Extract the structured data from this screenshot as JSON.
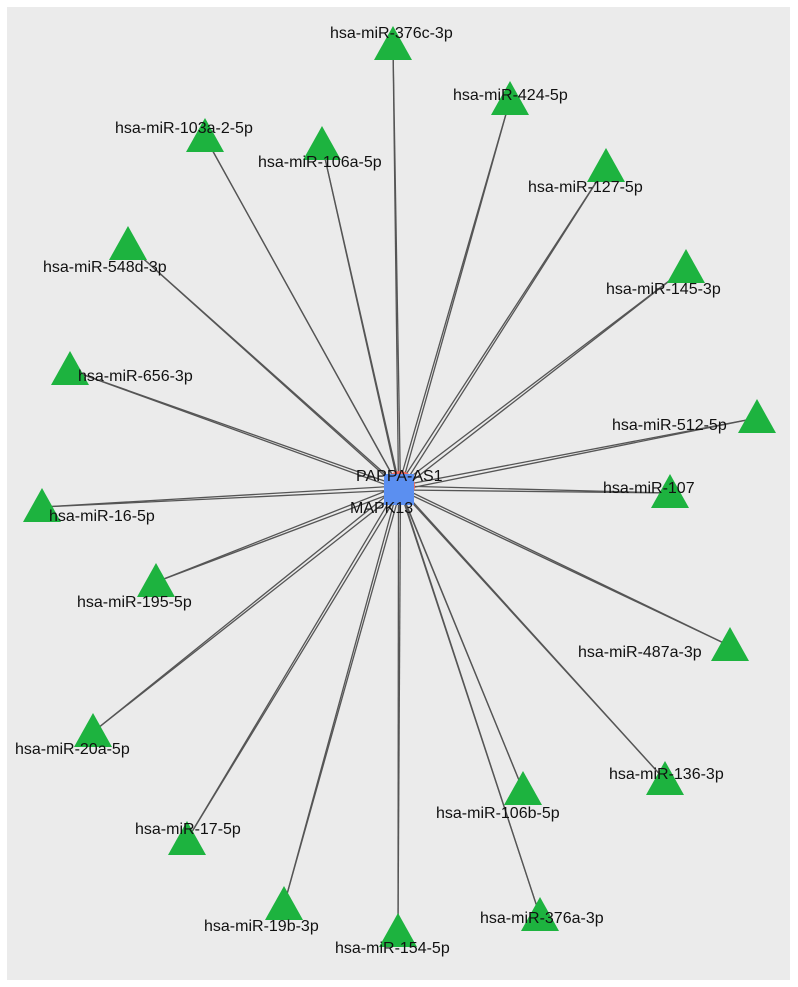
{
  "colors": {
    "background": "#ebebeb",
    "mirna": "#1db33f",
    "lncrna": "#f06a5f",
    "mrna": "#5b8ff0",
    "edge": "#555555"
  },
  "hubs": {
    "lncrna": "PAPPA-AS1",
    "mrna": "MAPK13"
  },
  "mirnas": [
    "hsa-miR-376c-3p",
    "hsa-miR-424-5p",
    "hsa-miR-103a-2-5p",
    "hsa-miR-106a-5p",
    "hsa-miR-127-5p",
    "hsa-miR-548d-3p",
    "hsa-miR-145-3p",
    "hsa-miR-656-3p",
    "hsa-miR-512-5p",
    "hsa-miR-107",
    "hsa-miR-16-5p",
    "hsa-miR-195-5p",
    "hsa-miR-487a-3p",
    "hsa-miR-20a-5p",
    "hsa-miR-136-3p",
    "hsa-miR-106b-5p",
    "hsa-miR-17-5p",
    "hsa-miR-19b-3p",
    "hsa-miR-376a-3p",
    "hsa-miR-154-5p"
  ]
}
